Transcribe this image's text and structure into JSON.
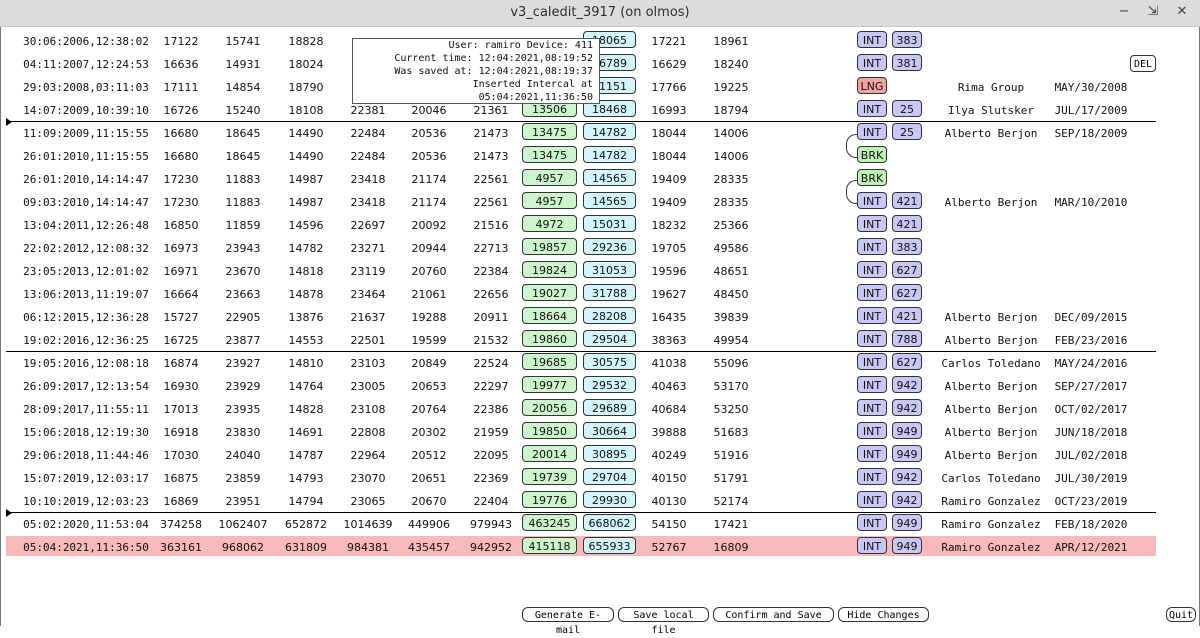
{
  "window": {
    "title": "v3_caledit_3917 (on olmos)"
  },
  "tooltip": {
    "user_line": "User: ramiro Device: 411",
    "current_line": "Current time: 12:04:2021,08:19:52",
    "saved_line": "Was saved at: 12:04:2021,08:19:37",
    "inserted_line": "Inserted Intercal at 05:04:2021,11:36:50"
  },
  "del_label": "DEL",
  "rows": [
    {
      "ts": "30:06:2006,12:38:02",
      "a": "17122",
      "b": "15741",
      "c": "18828",
      "d": "",
      "e": "",
      "f": "",
      "g": "",
      "h": "18065",
      "i": "17221",
      "j": "18961",
      "type": "INT",
      "num": "383",
      "name": "",
      "date": ""
    },
    {
      "ts": "04:11:2007,12:24:53",
      "a": "16636",
      "b": "14931",
      "c": "18024",
      "d": "",
      "e": "",
      "f": "",
      "g": "",
      "h": "16789",
      "i": "16629",
      "j": "18240",
      "type": "INT",
      "num": "381",
      "name": "",
      "date": ""
    },
    {
      "ts": "29:03:2008,03:11:03",
      "a": "17111",
      "b": "14854",
      "c": "18790",
      "d": "",
      "e": "",
      "f": "",
      "g": "",
      "h": "21151",
      "i": "17766",
      "j": "19225",
      "type": "LNG",
      "num": "",
      "name": "Rima Group",
      "date": "MAY/30/2008"
    },
    {
      "ts": "14:07:2009,10:39:10",
      "a": "16726",
      "b": "15240",
      "c": "18108",
      "d": "22381",
      "e": "20046",
      "f": "21361",
      "g": "13506",
      "h": "18468",
      "i": "16993",
      "j": "18794",
      "type": "INT",
      "num": "25",
      "name": "Ilya Slutsker",
      "date": "JUL/17/2009"
    },
    {
      "ts": "11:09:2009,11:15:55",
      "a": "16680",
      "b": "18645",
      "c": "14490",
      "d": "22484",
      "e": "20536",
      "f": "21473",
      "g": "13475",
      "h": "14782",
      "i": "18044",
      "j": "14006",
      "type": "INT",
      "num": "25",
      "name": "Alberto Berjon",
      "date": "SEP/18/2009"
    },
    {
      "ts": "26:01:2010,11:15:55",
      "a": "16680",
      "b": "18645",
      "c": "14490",
      "d": "22484",
      "e": "20536",
      "f": "21473",
      "g": "13475",
      "h": "14782",
      "i": "18044",
      "j": "14006",
      "type": "BRK",
      "num": "",
      "name": "",
      "date": ""
    },
    {
      "ts": "26:01:2010,14:14:47",
      "a": "17230",
      "b": "11883",
      "c": "14987",
      "d": "23418",
      "e": "21174",
      "f": "22561",
      "g": "4957",
      "h": "14565",
      "i": "19409",
      "j": "28335",
      "type": "BRK",
      "num": "",
      "name": "",
      "date": ""
    },
    {
      "ts": "09:03:2010,14:14:47",
      "a": "17230",
      "b": "11883",
      "c": "14987",
      "d": "23418",
      "e": "21174",
      "f": "22561",
      "g": "4957",
      "h": "14565",
      "i": "19409",
      "j": "28335",
      "type": "INT",
      "num": "421",
      "name": "Alberto Berjon",
      "date": "MAR/10/2010"
    },
    {
      "ts": "13:04:2011,12:26:48",
      "a": "16850",
      "b": "11859",
      "c": "14596",
      "d": "22697",
      "e": "20092",
      "f": "21516",
      "g": "4972",
      "h": "15031",
      "i": "18232",
      "j": "25366",
      "type": "INT",
      "num": "421",
      "name": "",
      "date": ""
    },
    {
      "ts": "22:02:2012,12:08:32",
      "a": "16973",
      "b": "23943",
      "c": "14782",
      "d": "23271",
      "e": "20944",
      "f": "22713",
      "g": "19857",
      "h": "29236",
      "i": "19705",
      "j": "49586",
      "type": "INT",
      "num": "383",
      "name": "",
      "date": ""
    },
    {
      "ts": "23:05:2013,12:01:02",
      "a": "16971",
      "b": "23670",
      "c": "14818",
      "d": "23119",
      "e": "20760",
      "f": "22384",
      "g": "19824",
      "h": "31053",
      "i": "19596",
      "j": "48651",
      "type": "INT",
      "num": "627",
      "name": "",
      "date": ""
    },
    {
      "ts": "13:06:2013,11:19:07",
      "a": "16664",
      "b": "23663",
      "c": "14878",
      "d": "23464",
      "e": "21061",
      "f": "22656",
      "g": "19027",
      "h": "31788",
      "i": "19627",
      "j": "48450",
      "type": "INT",
      "num": "627",
      "name": "",
      "date": ""
    },
    {
      "ts": "06:12:2015,12:36:28",
      "a": "15727",
      "b": "22905",
      "c": "13876",
      "d": "21637",
      "e": "19288",
      "f": "20911",
      "g": "18664",
      "h": "28208",
      "i": "16435",
      "j": "39839",
      "type": "INT",
      "num": "421",
      "name": "Alberto Berjon",
      "date": "DEC/09/2015"
    },
    {
      "ts": "19:02:2016,12:36:25",
      "a": "16725",
      "b": "23877",
      "c": "14553",
      "d": "22501",
      "e": "19599",
      "f": "21532",
      "g": "19860",
      "h": "29504",
      "i": "38363",
      "j": "49954",
      "type": "INT",
      "num": "788",
      "name": "Alberto Berjon",
      "date": "FEB/23/2016"
    },
    {
      "ts": "19:05:2016,12:08:18",
      "a": "16874",
      "b": "23927",
      "c": "14810",
      "d": "23103",
      "e": "20849",
      "f": "22524",
      "g": "19685",
      "h": "30575",
      "i": "41038",
      "j": "55096",
      "type": "INT",
      "num": "627",
      "name": "Carlos Toledano",
      "date": "MAY/24/2016"
    },
    {
      "ts": "26:09:2017,12:13:54",
      "a": "16930",
      "b": "23929",
      "c": "14764",
      "d": "23005",
      "e": "20653",
      "f": "22297",
      "g": "19977",
      "h": "29532",
      "i": "40463",
      "j": "53170",
      "type": "INT",
      "num": "942",
      "name": "Alberto Berjon",
      "date": "SEP/27/2017"
    },
    {
      "ts": "28:09:2017,11:55:11",
      "a": "17013",
      "b": "23935",
      "c": "14828",
      "d": "23108",
      "e": "20764",
      "f": "22386",
      "g": "20056",
      "h": "29689",
      "i": "40684",
      "j": "53250",
      "type": "INT",
      "num": "942",
      "name": "Alberto Berjon",
      "date": "OCT/02/2017"
    },
    {
      "ts": "15:06:2018,12:19:30",
      "a": "16918",
      "b": "23830",
      "c": "14691",
      "d": "22808",
      "e": "20302",
      "f": "21959",
      "g": "19850",
      "h": "30664",
      "i": "39888",
      "j": "51683",
      "type": "INT",
      "num": "949",
      "name": "Alberto Berjon",
      "date": "JUN/18/2018"
    },
    {
      "ts": "29:06:2018,11:44:46",
      "a": "17030",
      "b": "24040",
      "c": "14787",
      "d": "22964",
      "e": "20512",
      "f": "22095",
      "g": "20014",
      "h": "30895",
      "i": "40249",
      "j": "51916",
      "type": "INT",
      "num": "949",
      "name": "Alberto Berjon",
      "date": "JUL/02/2018"
    },
    {
      "ts": "15:07:2019,12:03:17",
      "a": "16875",
      "b": "23859",
      "c": "14793",
      "d": "23070",
      "e": "20651",
      "f": "22369",
      "g": "19739",
      "h": "29704",
      "i": "40150",
      "j": "51791",
      "type": "INT",
      "num": "942",
      "name": "Carlos Toledano",
      "date": "JUL/30/2019"
    },
    {
      "ts": "10:10:2019,12:03:23",
      "a": "16869",
      "b": "23951",
      "c": "14794",
      "d": "23065",
      "e": "20670",
      "f": "22404",
      "g": "19776",
      "h": "29930",
      "i": "40130",
      "j": "52174",
      "type": "INT",
      "num": "942",
      "name": "Ramiro Gonzalez",
      "date": "OCT/23/2019"
    },
    {
      "ts": "05:02:2020,11:53:04",
      "a": "374258",
      "b": "1062407",
      "c": "652872",
      "d": "1014639",
      "e": "449906",
      "f": "979943",
      "g": "463245",
      "h": "668062",
      "i": "54150",
      "j": "17421",
      "type": "INT",
      "num": "949",
      "name": "Ramiro Gonzalez",
      "date": "FEB/18/2020"
    },
    {
      "ts": "05:04:2021,11:36:50",
      "a": "363161",
      "b": "968062",
      "c": "631809",
      "d": "984381",
      "e": "435457",
      "f": "942952",
      "g": "415118",
      "h": "655933",
      "i": "52767",
      "j": "16809",
      "type": "INT",
      "num": "949",
      "name": "Ramiro Gonzalez",
      "date": "APR/12/2021"
    }
  ],
  "buttons": {
    "generate": "Generate E-mail",
    "save_local": "Save local file",
    "confirm": "Confirm and Save",
    "hide": "Hide Changes",
    "quit": "Quit"
  }
}
